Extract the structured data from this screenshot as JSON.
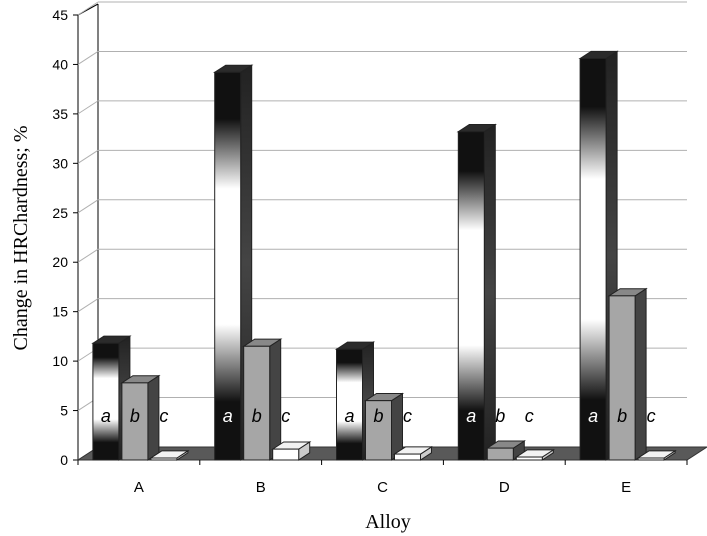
{
  "chart_data": {
    "type": "bar",
    "style": "3d-clustered-column",
    "categories": [
      "A",
      "B",
      "C",
      "D",
      "E"
    ],
    "series": [
      {
        "name": "a",
        "values": [
          11.8,
          39.2,
          11.2,
          33.2,
          40.6
        ]
      },
      {
        "name": "b",
        "values": [
          7.8,
          11.5,
          6.0,
          1.2,
          16.6
        ]
      },
      {
        "name": "c",
        "values": [
          0.1,
          1.1,
          0.6,
          0.3,
          0.1
        ]
      }
    ],
    "title": "",
    "xlabel": "Alloy",
    "ylabel": "Change in  HRChardness; %",
    "ylim": [
      0,
      45
    ],
    "yticks": [
      0,
      5,
      10,
      15,
      20,
      25,
      30,
      35,
      40,
      45
    ],
    "grid": true,
    "legend": "none",
    "colors": {
      "floor": "#595959",
      "wall_line": "#000000",
      "gridline": "#b0b0b0",
      "series_b_front": "#a6a6a6",
      "series_b_side": "#444444",
      "series_c_front": "#ffffff",
      "bar_label_light": "#ffffff",
      "bar_label_dark": "#000000"
    }
  }
}
